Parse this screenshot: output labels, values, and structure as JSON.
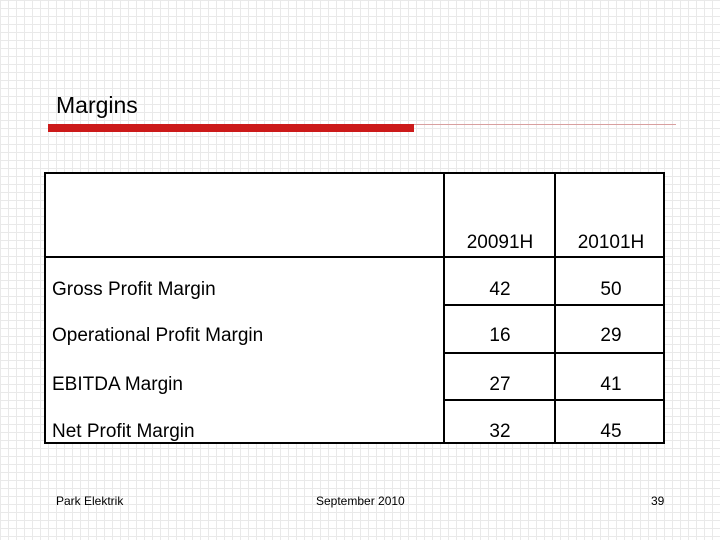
{
  "slide": {
    "title": "Margins"
  },
  "table": {
    "headers": [
      "",
      "20091H",
      "20101H"
    ],
    "rows": [
      {
        "label": "Gross Profit Margin",
        "values": [
          "42",
          "50"
        ]
      },
      {
        "label": "Operational Profit Margin",
        "values": [
          "16",
          "29"
        ]
      },
      {
        "label": "EBITDA Margin",
        "values": [
          "27",
          "41"
        ]
      },
      {
        "label": "Net Profit Margin",
        "values": [
          "32",
          "45"
        ]
      }
    ]
  },
  "footer": {
    "company": "Park Elektrik",
    "date": "September 2010",
    "page_number": "39"
  },
  "colors": {
    "accent_bar": "#cc1a1a",
    "grid": "#e9e9e9"
  }
}
